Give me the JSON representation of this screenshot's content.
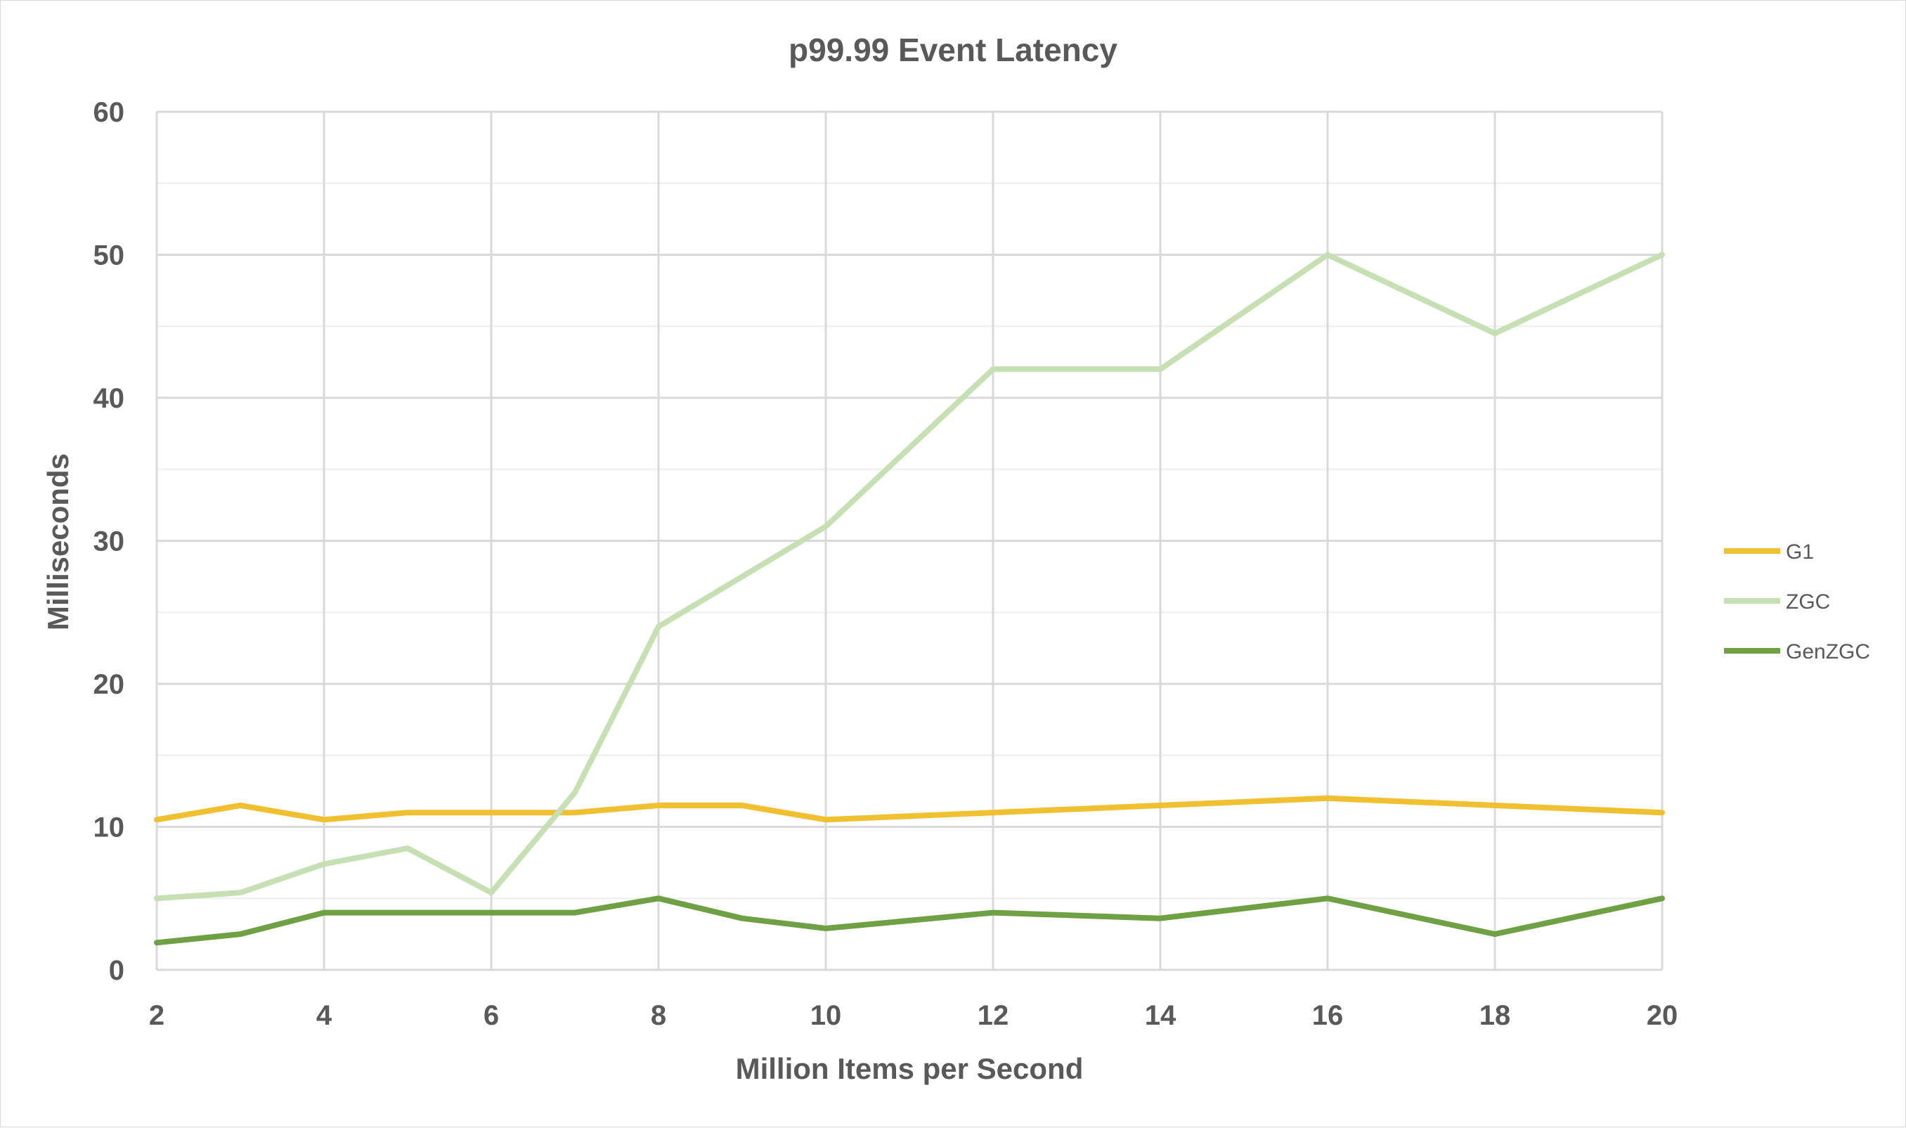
{
  "chart_data": {
    "type": "line",
    "title": "p99.99 Event Latency",
    "xlabel": "Million Items per Second",
    "ylabel": "Milliseconds",
    "xlim": [
      2,
      20
    ],
    "ylim": [
      0,
      60
    ],
    "x_ticks": [
      "2",
      "4",
      "6",
      "8",
      "10",
      "12",
      "14",
      "16",
      "18",
      "20"
    ],
    "y_ticks": [
      "0",
      "10",
      "20",
      "30",
      "40",
      "50",
      "60"
    ],
    "grid": true,
    "legend_position": "right",
    "x": [
      2,
      3,
      4,
      5,
      6,
      7,
      8,
      9,
      10,
      12,
      14,
      16,
      18,
      20
    ],
    "series": [
      {
        "name": "G1",
        "color": "#f0c030",
        "values": [
          10.5,
          11.5,
          10.5,
          11,
          11,
          11,
          11.5,
          11.5,
          10.5,
          11,
          11.5,
          12,
          11.5,
          11
        ]
      },
      {
        "name": "ZGC",
        "color": "#c6e0b4",
        "values": [
          5,
          5.4,
          7.4,
          8.5,
          5.4,
          12.4,
          24,
          27.5,
          31,
          42,
          42,
          50,
          44.5,
          50
        ]
      },
      {
        "name": "GenZGC",
        "color": "#70a044",
        "values": [
          1.9,
          2.5,
          4,
          4,
          4,
          4,
          5,
          3.6,
          2.9,
          4,
          3.6,
          5,
          2.5,
          5
        ]
      }
    ]
  }
}
